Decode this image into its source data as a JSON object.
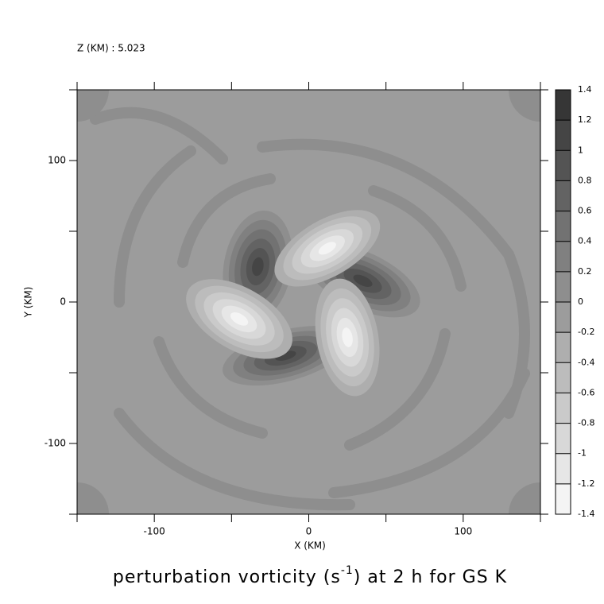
{
  "chart_data": {
    "type": "contour",
    "subtitle": "Z (KM) : 5.023",
    "title": "perturbation vorticity (s",
    "title_sup": "-1",
    "title_end": ") at 2 h for GS K",
    "x_label": "X (KM)",
    "y_label": "Y (KM)",
    "xlim": [
      -150,
      150
    ],
    "ylim": [
      -150,
      150
    ],
    "xticks": [
      -100,
      0,
      100
    ],
    "yticks": [
      -100,
      0,
      100
    ],
    "minor_ticks": [
      -150,
      -50,
      50,
      150
    ],
    "levels": [
      -1.4,
      -1.2,
      -1,
      -0.8,
      -0.6,
      -0.4,
      -0.2,
      0,
      0.2,
      0.4,
      0.6,
      0.8,
      1,
      1.2,
      1.4
    ],
    "colors": [
      "#f4f4f4",
      "#e6e6e6",
      "#d8d8d8",
      "#cacaca",
      "#bcbcbc",
      "#aeaeae",
      "#9c9c9c",
      "#8e8e8e",
      "#808080",
      "#727272",
      "#636363",
      "#545454",
      "#454545",
      "#363636"
    ]
  }
}
